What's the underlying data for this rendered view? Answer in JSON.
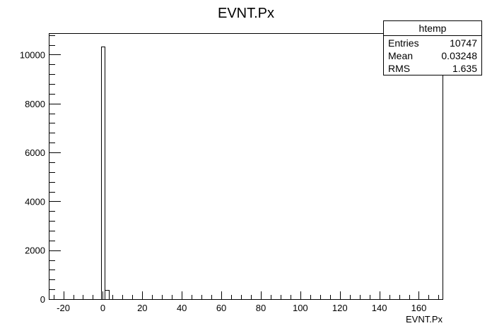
{
  "chart_data": {
    "type": "bar",
    "title": "EVNT.Px",
    "xlabel": "EVNT.Px",
    "ylabel": "",
    "xlim": [
      -27,
      172
    ],
    "ylim": [
      0,
      10850
    ],
    "bin_width": 2,
    "x_ticks": [
      -20,
      0,
      20,
      40,
      60,
      80,
      100,
      120,
      140,
      160
    ],
    "y_ticks": [
      0,
      2000,
      4000,
      6000,
      8000,
      10000
    ],
    "x_tick_labels": [
      "-20",
      "0",
      "20",
      "40",
      "60",
      "80",
      "100",
      "120",
      "140",
      "160"
    ],
    "y_tick_labels": [
      "0",
      "2000",
      "4000",
      "6000",
      "8000",
      "10000"
    ],
    "series": [
      {
        "bins": [
          {
            "x0": -1,
            "x1": 1,
            "count": 10320
          },
          {
            "x0": 1,
            "x1": 3,
            "count": 380
          }
        ]
      }
    ],
    "grid": false,
    "legend": "none"
  },
  "stats_box": {
    "title": "htemp",
    "rows": [
      {
        "label": "Entries",
        "value": "10747"
      },
      {
        "label": "Mean",
        "value": "0.03248"
      },
      {
        "label": "RMS",
        "value": "1.635"
      }
    ]
  }
}
